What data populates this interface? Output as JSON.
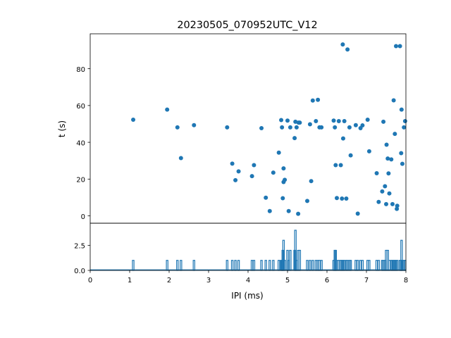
{
  "chart_data": [
    {
      "type": "scatter",
      "title": "20230505_070952UTC_V12",
      "xlabel": "",
      "ylabel": "t (s)",
      "xlim": [
        0,
        8
      ],
      "ylim": [
        99,
        -4
      ],
      "y_inverted": true,
      "yticks": [
        0,
        20,
        40,
        60,
        80
      ],
      "ytick_labels": [
        "0",
        "20",
        "40",
        "60",
        "80"
      ],
      "grid": false,
      "color": "#1f77b4",
      "x": [
        1.09,
        1.95,
        2.21,
        2.3,
        2.63,
        3.47,
        3.6,
        3.68,
        3.76,
        4.1,
        4.15,
        4.34,
        4.45,
        4.55,
        4.64,
        4.78,
        4.84,
        4.86,
        4.88,
        4.9,
        4.9,
        4.93,
        5.0,
        5.03,
        5.07,
        5.18,
        5.2,
        5.23,
        5.27,
        5.28,
        5.31,
        5.5,
        5.57,
        5.6,
        5.64,
        5.72,
        5.77,
        5.81,
        5.86,
        6.17,
        6.2,
        6.22,
        6.25,
        6.3,
        6.35,
        6.38,
        6.4,
        6.41,
        6.44,
        6.49,
        6.52,
        6.57,
        6.6,
        6.73,
        6.78,
        6.85,
        6.9,
        7.03,
        7.07,
        7.26,
        7.31,
        7.4,
        7.43,
        7.47,
        7.5,
        7.51,
        7.54,
        7.56,
        7.58,
        7.63,
        7.66,
        7.69,
        7.72,
        7.75,
        7.77,
        7.78,
        7.85,
        7.88,
        7.89,
        7.91,
        7.95,
        7.98
      ],
      "y": [
        52.3,
        57.8,
        48.1,
        31.4,
        49.3,
        48.1,
        28.4,
        19.4,
        24.2,
        21.6,
        27.6,
        47.7,
        9.9,
        2.6,
        23.5,
        34.4,
        52.1,
        48.1,
        9.6,
        25.8,
        18.4,
        19.6,
        51.8,
        2.6,
        48.1,
        42.3,
        51.2,
        48.1,
        1.1,
        50.7,
        50.7,
        8.1,
        49.8,
        18.9,
        62.7,
        51.5,
        63.1,
        48.1,
        48.1,
        51.8,
        48.1,
        27.6,
        9.7,
        51.5,
        27.6,
        9.4,
        93.2,
        42.1,
        51.5,
        9.4,
        90.5,
        48.1,
        32.9,
        49.3,
        1.2,
        47.7,
        49.2,
        52.3,
        35.1,
        23.2,
        7.6,
        13.3,
        51.2,
        16.1,
        6.4,
        38.7,
        31.2,
        23.1,
        12.2,
        30.7,
        6.4,
        62.8,
        44.6,
        92.3,
        3.8,
        5.5,
        92.3,
        34.1,
        57.8,
        28.3,
        48.1,
        51.5
      ]
    },
    {
      "type": "bar",
      "xlabel": "IPI (ms)",
      "ylabel": "",
      "xlim": [
        0,
        8
      ],
      "ylim": [
        0,
        4.7
      ],
      "xticks": [
        0,
        1,
        2,
        3,
        4,
        5,
        6,
        7,
        8
      ],
      "xtick_labels": [
        "0",
        "1",
        "2",
        "3",
        "4",
        "5",
        "6",
        "7",
        "8"
      ],
      "yticks": [
        0,
        2.5
      ],
      "ytick_labels": [
        "0.0",
        "2.5"
      ],
      "color": "#1f77b4",
      "x": [
        1.09,
        1.95,
        2.21,
        2.3,
        2.63,
        3.47,
        3.6,
        3.68,
        3.76,
        4.1,
        4.15,
        4.34,
        4.45,
        4.55,
        4.64,
        4.78,
        4.84,
        4.86,
        4.88,
        4.9,
        4.93,
        5.0,
        5.03,
        5.07,
        5.18,
        5.2,
        5.23,
        5.27,
        5.31,
        5.5,
        5.57,
        5.64,
        5.72,
        5.77,
        5.81,
        5.86,
        6.17,
        6.2,
        6.22,
        6.25,
        6.3,
        6.35,
        6.38,
        6.41,
        6.44,
        6.49,
        6.52,
        6.57,
        6.6,
        6.73,
        6.78,
        6.85,
        6.9,
        7.03,
        7.07,
        7.26,
        7.31,
        7.4,
        7.43,
        7.47,
        7.5,
        7.54,
        7.58,
        7.63,
        7.66,
        7.69,
        7.72,
        7.75,
        7.78,
        7.85,
        7.88,
        7.89,
        7.91,
        7.95,
        7.98
      ],
      "values": [
        1,
        1,
        1,
        1,
        1,
        1,
        1,
        1,
        1,
        1,
        1,
        1,
        1,
        1,
        1,
        1,
        1,
        1,
        2,
        3,
        1,
        2,
        1,
        2,
        2,
        4,
        1,
        2,
        2,
        1,
        1,
        1,
        1,
        1,
        1,
        1,
        1,
        2,
        2,
        1,
        1,
        1,
        1,
        1,
        1,
        1,
        1,
        1,
        1,
        1,
        1,
        1,
        1,
        1,
        1,
        1,
        1,
        1,
        1,
        1,
        2,
        2,
        1,
        1,
        1,
        1,
        1,
        1,
        1,
        1,
        1,
        3,
        1,
        1,
        1
      ]
    }
  ]
}
